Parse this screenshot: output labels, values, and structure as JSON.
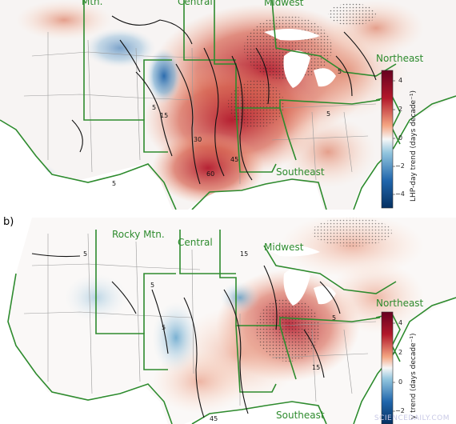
{
  "panels": [
    {
      "letter": "",
      "regions": {
        "rocky": "Mtn.",
        "central": "Central",
        "midwest": "Midwest",
        "northeast": "Northeast",
        "southeast": "Southeast"
      },
      "colorbar": {
        "label": "LHP-day trend (days decade⁻¹)",
        "ticks": [
          "4",
          "2",
          "0",
          "−2",
          "−4"
        ]
      },
      "contours": [
        "5",
        "15",
        "30",
        "60",
        "45",
        "5",
        "5",
        "5"
      ]
    },
    {
      "letter": "b)",
      "regions": {
        "rocky": "Rocky Mtn.",
        "central": "Central",
        "midwest": "Midwest",
        "northeast": "Northeast",
        "southeast": "Southeast"
      },
      "colorbar": {
        "label": "y trend (days decade⁻¹)",
        "ticks": [
          "4",
          "2",
          "0",
          "−2"
        ]
      },
      "contours": [
        "5",
        "5",
        "15",
        "15",
        "45",
        "5",
        "5"
      ]
    }
  ],
  "colors": {
    "boundary": "#2e8b2e",
    "warm": "#b2182b",
    "cool": "#2166ac",
    "neutral": "#f7f7f7"
  },
  "watermark": "SCIENCEDAILY.COM"
}
